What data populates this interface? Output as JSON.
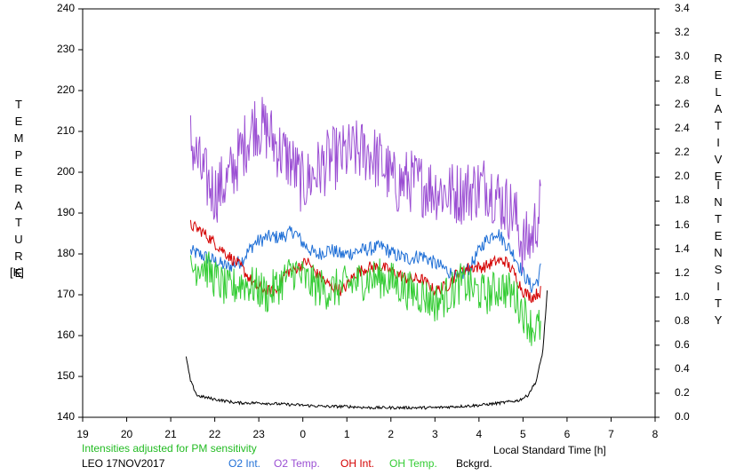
{
  "chart_data": {
    "type": "line",
    "x_axis": {
      "label": "Local Standard Time [h]",
      "range": [
        19,
        32
      ],
      "tick_labels": [
        "19",
        "20",
        "21",
        "22",
        "23",
        "0",
        "1",
        "2",
        "3",
        "4",
        "5",
        "6",
        "7",
        "8"
      ]
    },
    "y_left": {
      "label_letters": [
        "T",
        "E",
        "M",
        "P",
        "E",
        "R",
        "A",
        "T",
        "U",
        "R",
        "E"
      ],
      "unit": "[K]",
      "range": [
        140,
        240
      ],
      "tick_labels": [
        "140",
        "150",
        "160",
        "170",
        "180",
        "190",
        "200",
        "210",
        "220",
        "230",
        "240"
      ]
    },
    "y_right": {
      "label_letters_1": [
        "R",
        "E",
        "L",
        "A",
        "T",
        "I",
        "V",
        "E"
      ],
      "label_letters_2": [
        "I",
        "N",
        "T",
        "E",
        "N",
        "S",
        "I",
        "T",
        "Y"
      ],
      "range": [
        0,
        3.4
      ],
      "tick_labels": [
        "0.0",
        "0.2",
        "0.4",
        "0.6",
        "0.8",
        "1.0",
        "1.2",
        "1.4",
        "1.6",
        "1.8",
        "2.0",
        "2.2",
        "2.4",
        "2.6",
        "2.8",
        "3.0",
        "3.2",
        "3.4"
      ]
    },
    "series": [
      {
        "name": "O2 Int.",
        "axis": "right",
        "color": "#1f6fd6",
        "noise": 0.06,
        "points": [
          [
            21.45,
            1.38
          ],
          [
            21.7,
            1.35
          ],
          [
            22,
            1.3
          ],
          [
            22.3,
            1.25
          ],
          [
            22.6,
            1.3
          ],
          [
            22.9,
            1.45
          ],
          [
            23.2,
            1.5
          ],
          [
            23.5,
            1.5
          ],
          [
            23.8,
            1.55
          ],
          [
            24,
            1.45
          ],
          [
            24.3,
            1.35
          ],
          [
            24.6,
            1.4
          ],
          [
            24.9,
            1.35
          ],
          [
            25.2,
            1.38
          ],
          [
            25.5,
            1.4
          ],
          [
            25.8,
            1.42
          ],
          [
            26.1,
            1.35
          ],
          [
            26.4,
            1.32
          ],
          [
            26.7,
            1.35
          ],
          [
            27,
            1.28
          ],
          [
            27.3,
            1.22
          ],
          [
            27.5,
            1.15
          ],
          [
            27.8,
            1.25
          ],
          [
            28.1,
            1.45
          ],
          [
            28.4,
            1.55
          ],
          [
            28.6,
            1.45
          ],
          [
            28.8,
            1.35
          ],
          [
            29,
            1.2
          ],
          [
            29.2,
            1.08
          ],
          [
            29.35,
            1.15
          ],
          [
            29.4,
            1.25
          ]
        ]
      },
      {
        "name": "O2 Temp.",
        "axis": "left",
        "color": "#9b4fd3",
        "noise": 8,
        "points": [
          [
            21.45,
            208
          ],
          [
            21.7,
            200
          ],
          [
            22,
            195
          ],
          [
            22.3,
            198
          ],
          [
            22.6,
            205
          ],
          [
            22.9,
            212
          ],
          [
            23.2,
            210
          ],
          [
            23.5,
            205
          ],
          [
            23.7,
            203
          ],
          [
            24,
            197
          ],
          [
            24.3,
            200
          ],
          [
            24.6,
            203
          ],
          [
            24.9,
            204
          ],
          [
            25.2,
            205
          ],
          [
            25.5,
            205
          ],
          [
            25.8,
            202
          ],
          [
            26.1,
            197
          ],
          [
            26.4,
            198
          ],
          [
            26.7,
            197
          ],
          [
            27,
            196
          ],
          [
            27.3,
            195
          ],
          [
            27.6,
            195
          ],
          [
            27.9,
            196
          ],
          [
            28.2,
            197
          ],
          [
            28.5,
            193
          ],
          [
            28.8,
            190
          ],
          [
            29,
            182
          ],
          [
            29.2,
            184
          ],
          [
            29.4,
            192
          ]
        ]
      },
      {
        "name": "OH Int.",
        "axis": "right",
        "color": "#d40000",
        "noise": 0.05,
        "points": [
          [
            21.45,
            1.6
          ],
          [
            21.7,
            1.55
          ],
          [
            22,
            1.45
          ],
          [
            22.3,
            1.35
          ],
          [
            22.6,
            1.25
          ],
          [
            22.9,
            1.1
          ],
          [
            23.2,
            1.05
          ],
          [
            23.4,
            1.05
          ],
          [
            23.6,
            1.2
          ],
          [
            23.9,
            1.25
          ],
          [
            24.1,
            1.3
          ],
          [
            24.3,
            1.2
          ],
          [
            24.6,
            1.1
          ],
          [
            24.9,
            1.05
          ],
          [
            25.2,
            1.2
          ],
          [
            25.5,
            1.25
          ],
          [
            25.8,
            1.25
          ],
          [
            26.1,
            1.2
          ],
          [
            26.4,
            1.15
          ],
          [
            26.7,
            1.15
          ],
          [
            27,
            1.05
          ],
          [
            27.3,
            1.1
          ],
          [
            27.5,
            1.2
          ],
          [
            27.8,
            1.25
          ],
          [
            28.1,
            1.25
          ],
          [
            28.4,
            1.3
          ],
          [
            28.6,
            1.3
          ],
          [
            28.8,
            1.2
          ],
          [
            29,
            1.05
          ],
          [
            29.2,
            1.0
          ],
          [
            29.4,
            1.05
          ]
        ]
      },
      {
        "name": "OH Temp.",
        "axis": "left",
        "color": "#33cc33",
        "noise": 5,
        "points": [
          [
            21.45,
            176
          ],
          [
            21.7,
            178
          ],
          [
            22,
            174
          ],
          [
            22.3,
            171
          ],
          [
            22.6,
            173
          ],
          [
            22.9,
            172
          ],
          [
            23.2,
            170
          ],
          [
            23.5,
            173
          ],
          [
            23.8,
            176
          ],
          [
            24,
            174
          ],
          [
            24.3,
            172
          ],
          [
            24.6,
            171
          ],
          [
            24.9,
            172
          ],
          [
            25.2,
            173
          ],
          [
            25.5,
            174
          ],
          [
            25.8,
            174
          ],
          [
            26.1,
            173
          ],
          [
            26.4,
            171
          ],
          [
            26.7,
            170
          ],
          [
            27,
            168
          ],
          [
            27.3,
            170
          ],
          [
            27.6,
            173
          ],
          [
            27.9,
            171
          ],
          [
            28.2,
            170
          ],
          [
            28.5,
            172
          ],
          [
            28.8,
            170
          ],
          [
            29,
            166
          ],
          [
            29.2,
            162
          ],
          [
            29.4,
            162
          ]
        ]
      },
      {
        "name": "Bckgrd.",
        "axis": "right",
        "color": "#000000",
        "noise": 0.012,
        "points": [
          [
            21.35,
            0.5
          ],
          [
            21.45,
            0.3
          ],
          [
            21.6,
            0.18
          ],
          [
            22,
            0.15
          ],
          [
            22.5,
            0.12
          ],
          [
            23,
            0.12
          ],
          [
            23.5,
            0.11
          ],
          [
            24,
            0.1
          ],
          [
            24.5,
            0.09
          ],
          [
            25,
            0.09
          ],
          [
            25.5,
            0.08
          ],
          [
            26,
            0.08
          ],
          [
            26.5,
            0.08
          ],
          [
            27,
            0.08
          ],
          [
            27.5,
            0.09
          ],
          [
            28,
            0.1
          ],
          [
            28.5,
            0.12
          ],
          [
            28.9,
            0.14
          ],
          [
            29.1,
            0.18
          ],
          [
            29.3,
            0.3
          ],
          [
            29.45,
            0.55
          ],
          [
            29.55,
            1.05
          ]
        ]
      }
    ],
    "notes": {
      "sensitivity": "Intensities adjusted for PM sensitivity",
      "site_date": "LEO 17NOV2017"
    },
    "grid": false,
    "legend_position": "bottom"
  },
  "colors": {
    "note_green": "#22bb22"
  }
}
